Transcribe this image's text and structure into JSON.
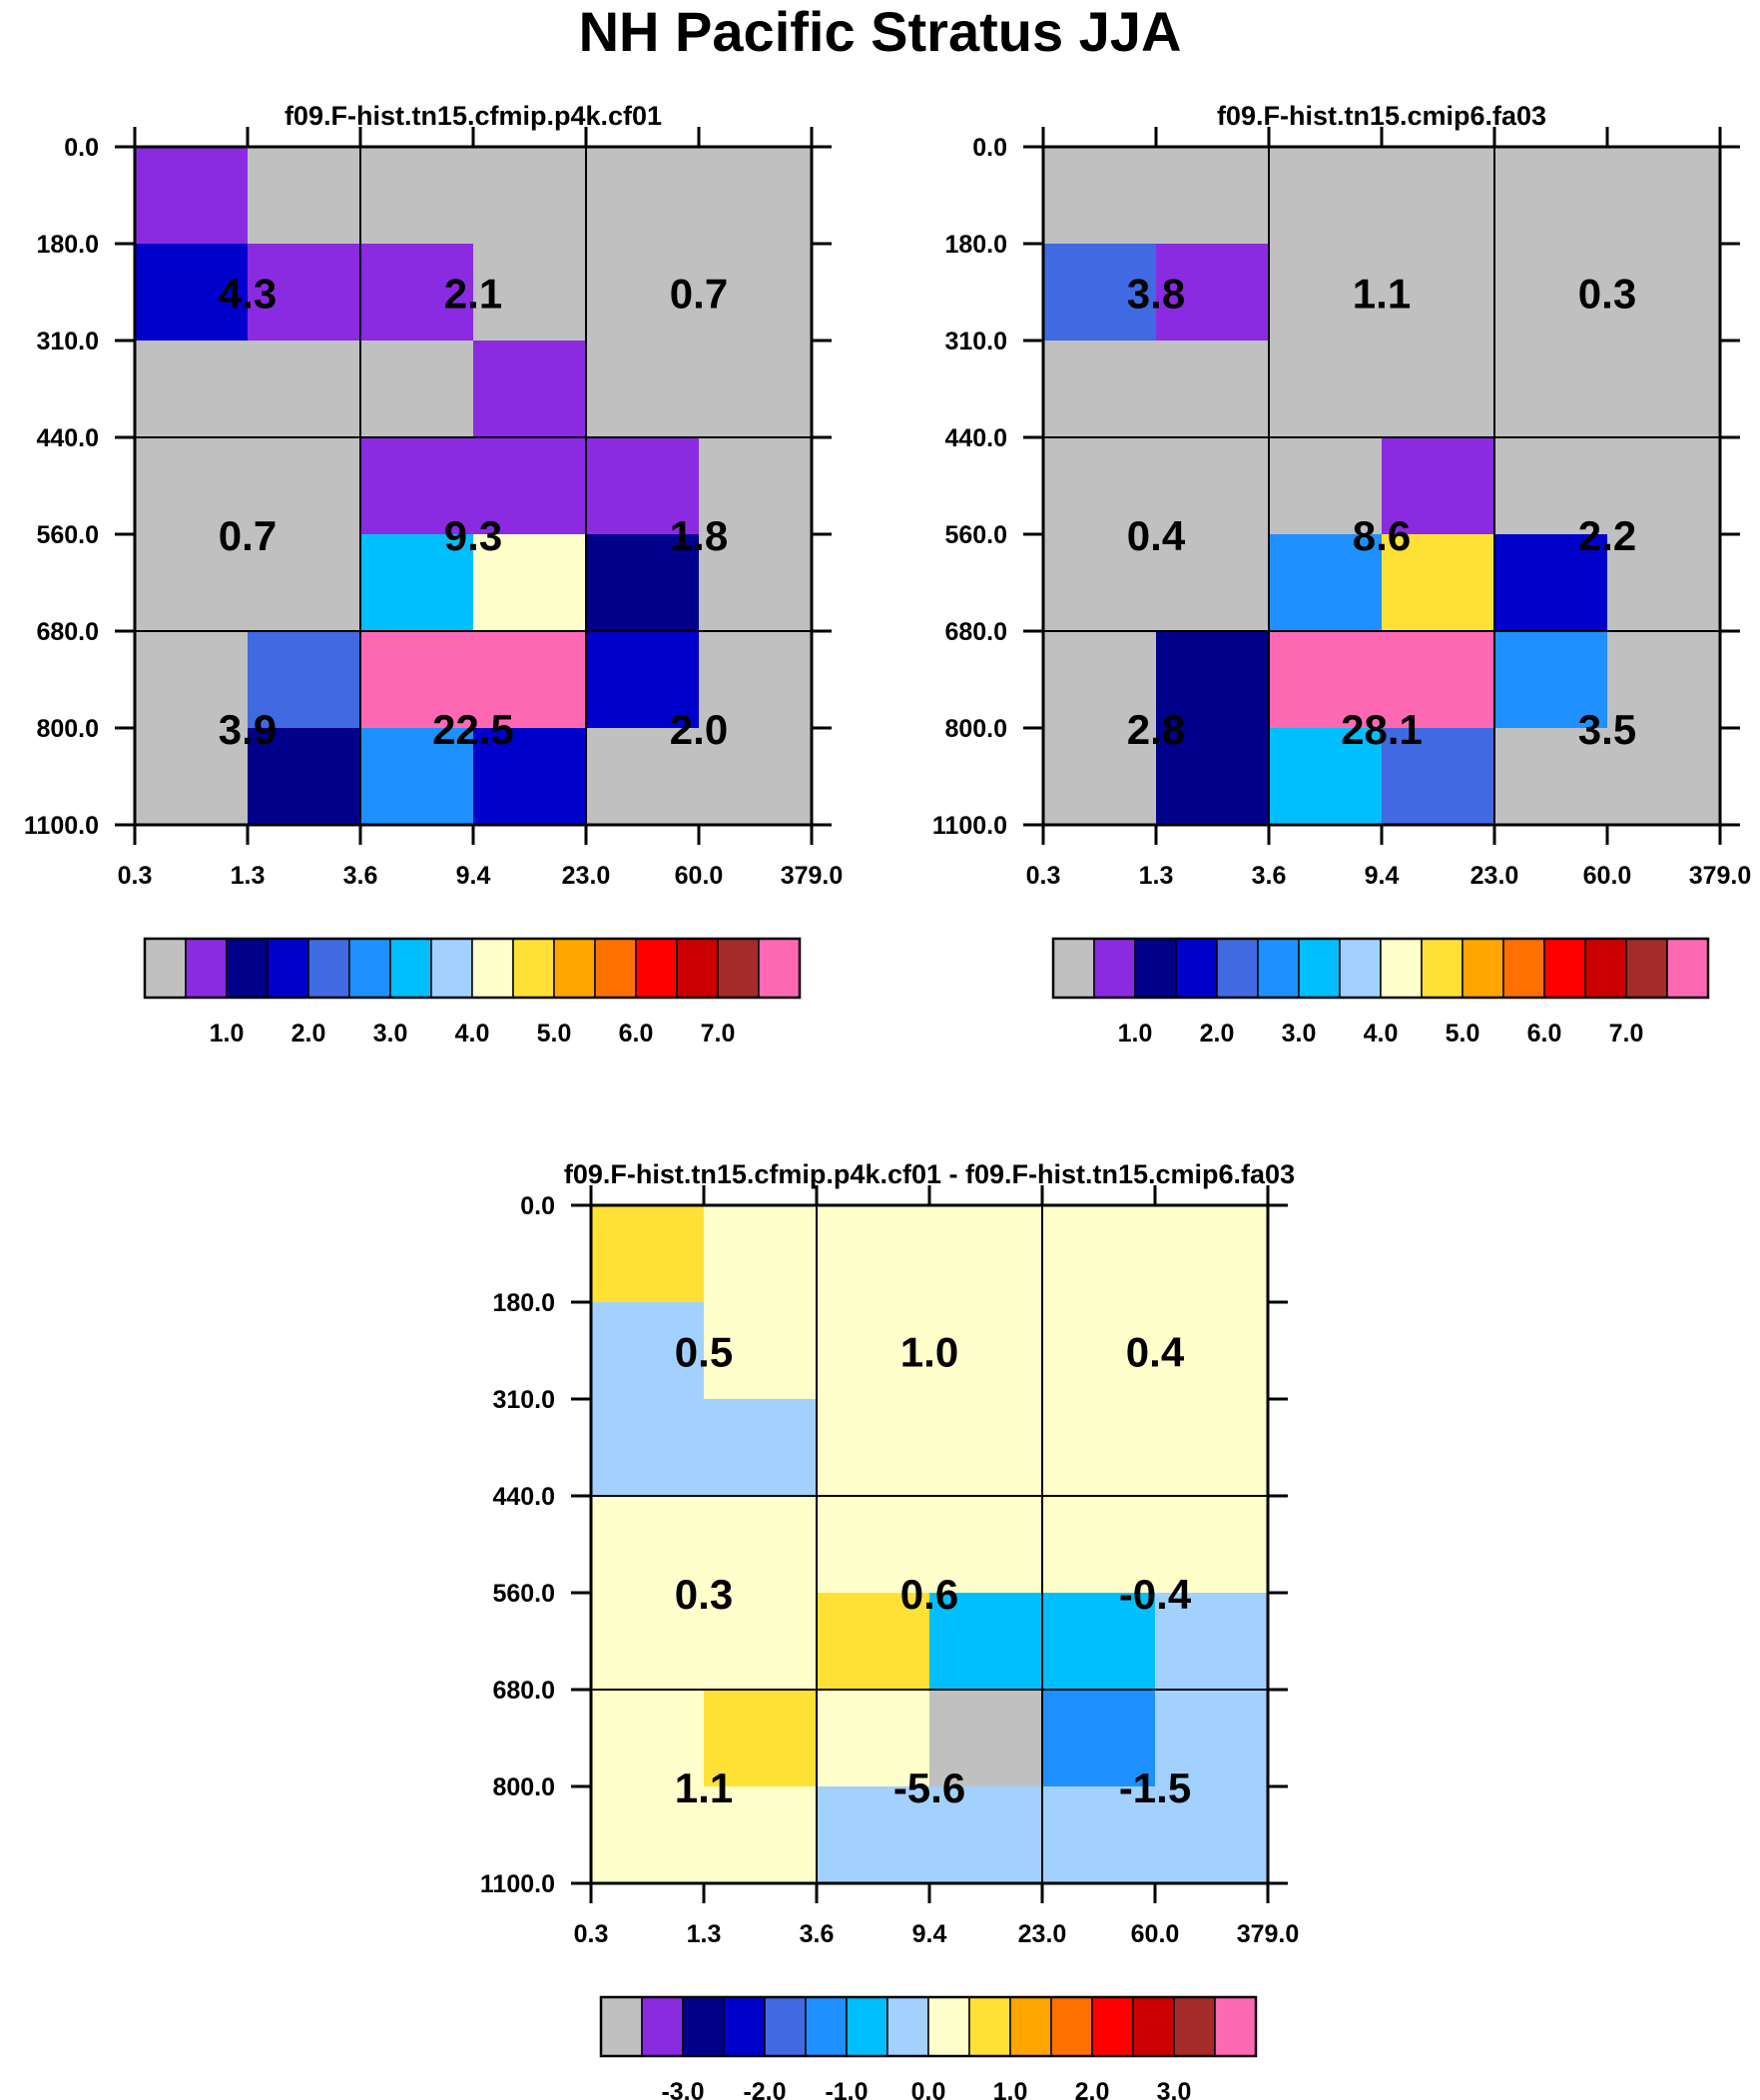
{
  "title": "NH Pacific Stratus JJA",
  "x_ticks": [
    "0.3",
    "1.3",
    "3.6",
    "9.4",
    "23.0",
    "60.0",
    "379.0"
  ],
  "y_ticks": [
    "0.0",
    "180.0",
    "310.0",
    "440.0",
    "560.0",
    "680.0",
    "800.0",
    "1100.0"
  ],
  "palette": {
    "gray": "#c0c0c0",
    "purple": "#8a2be2",
    "navy": "#00008b",
    "mediumblue": "#0000cd",
    "royalblue": "#4169e1",
    "dodgerblue": "#1e90ff",
    "deepskyblue": "#00bfff",
    "lightskyblue": "#a3d1ff",
    "lightyellow": "#ffffcc",
    "gold": "#ffe135",
    "orange": "#ffa500",
    "darkorange": "#ff7000",
    "red": "#ff0000",
    "darkred": "#cc0000",
    "brown": "#a52a2a",
    "hotpink": "#ff69b4"
  },
  "chart_data": [
    {
      "type": "heatmap",
      "title": "f09.F-hist.tn15.cfmip.p4k.cf01",
      "x_bin_edges": [
        0.3,
        1.3,
        3.6,
        9.4,
        23.0,
        60.0,
        379.0
      ],
      "y_bin_edges": [
        0.0,
        180.0,
        310.0,
        440.0,
        560.0,
        680.0,
        800.0,
        1100.0
      ],
      "cells": [
        [
          "purple",
          "gray",
          "gray",
          "gray",
          "gray",
          "gray"
        ],
        [
          "mediumblue",
          "purple",
          "purple",
          "gray",
          "gray",
          "gray"
        ],
        [
          "gray",
          "gray",
          "gray",
          "purple",
          "gray",
          "gray"
        ],
        [
          "gray",
          "gray",
          "purple",
          "purple",
          "purple",
          "gray"
        ],
        [
          "gray",
          "gray",
          "deepskyblue",
          "lightyellow",
          "navy",
          "gray"
        ],
        [
          "gray",
          "royalblue",
          "hotpink",
          "hotpink",
          "mediumblue",
          "gray"
        ],
        [
          "gray",
          "navy",
          "dodgerblue",
          "mediumblue",
          "gray",
          "gray"
        ]
      ],
      "group_labels": [
        [
          "4.3",
          "2.1",
          "0.7"
        ],
        [
          "0.7",
          "9.3",
          "1.8"
        ],
        [
          "3.9",
          "22.5",
          "2.0"
        ]
      ],
      "colorbar": {
        "colors": [
          "gray",
          "purple",
          "navy",
          "mediumblue",
          "royalblue",
          "dodgerblue",
          "deepskyblue",
          "lightskyblue",
          "lightyellow",
          "gold",
          "orange",
          "darkorange",
          "red",
          "darkred",
          "brown",
          "hotpink"
        ],
        "labels": [
          "1.0",
          "2.0",
          "3.0",
          "4.0",
          "5.0",
          "6.0",
          "7.0"
        ],
        "label_boundaries": [
          2,
          4,
          6,
          8,
          10,
          12,
          14
        ]
      }
    },
    {
      "type": "heatmap",
      "title": "f09.F-hist.tn15.cmip6.fa03",
      "x_bin_edges": [
        0.3,
        1.3,
        3.6,
        9.4,
        23.0,
        60.0,
        379.0
      ],
      "y_bin_edges": [
        0.0,
        180.0,
        310.0,
        440.0,
        560.0,
        680.0,
        800.0,
        1100.0
      ],
      "cells": [
        [
          "gray",
          "gray",
          "gray",
          "gray",
          "gray",
          "gray"
        ],
        [
          "royalblue",
          "purple",
          "gray",
          "gray",
          "gray",
          "gray"
        ],
        [
          "gray",
          "gray",
          "gray",
          "gray",
          "gray",
          "gray"
        ],
        [
          "gray",
          "gray",
          "gray",
          "purple",
          "gray",
          "gray"
        ],
        [
          "gray",
          "gray",
          "dodgerblue",
          "gold",
          "mediumblue",
          "gray"
        ],
        [
          "gray",
          "navy",
          "hotpink",
          "hotpink",
          "dodgerblue",
          "gray"
        ],
        [
          "gray",
          "navy",
          "deepskyblue",
          "royalblue",
          "gray",
          "gray"
        ]
      ],
      "group_labels": [
        [
          "3.8",
          "1.1",
          "0.3"
        ],
        [
          "0.4",
          "8.6",
          "2.2"
        ],
        [
          "2.8",
          "28.1",
          "3.5"
        ]
      ],
      "colorbar": {
        "colors": [
          "gray",
          "purple",
          "navy",
          "mediumblue",
          "royalblue",
          "dodgerblue",
          "deepskyblue",
          "lightskyblue",
          "lightyellow",
          "gold",
          "orange",
          "darkorange",
          "red",
          "darkred",
          "brown",
          "hotpink"
        ],
        "labels": [
          "1.0",
          "2.0",
          "3.0",
          "4.0",
          "5.0",
          "6.0",
          "7.0"
        ],
        "label_boundaries": [
          2,
          4,
          6,
          8,
          10,
          12,
          14
        ]
      }
    },
    {
      "type": "heatmap",
      "title": "f09.F-hist.tn15.cfmip.p4k.cf01 - f09.F-hist.tn15.cmip6.fa03",
      "x_bin_edges": [
        0.3,
        1.3,
        3.6,
        9.4,
        23.0,
        60.0,
        379.0
      ],
      "y_bin_edges": [
        0.0,
        180.0,
        310.0,
        440.0,
        560.0,
        680.0,
        800.0,
        1100.0
      ],
      "cells": [
        [
          "gold",
          "lightyellow",
          "lightyellow",
          "lightyellow",
          "lightyellow",
          "lightyellow"
        ],
        [
          "lightskyblue",
          "lightyellow",
          "lightyellow",
          "lightyellow",
          "lightyellow",
          "lightyellow"
        ],
        [
          "lightskyblue",
          "lightskyblue",
          "lightyellow",
          "lightyellow",
          "lightyellow",
          "lightyellow"
        ],
        [
          "lightyellow",
          "lightyellow",
          "lightyellow",
          "lightyellow",
          "lightyellow",
          "lightyellow"
        ],
        [
          "lightyellow",
          "lightyellow",
          "gold",
          "deepskyblue",
          "deepskyblue",
          "lightskyblue"
        ],
        [
          "lightyellow",
          "gold",
          "lightyellow",
          "gray",
          "dodgerblue",
          "lightskyblue"
        ],
        [
          "lightyellow",
          "lightyellow",
          "lightskyblue",
          "lightskyblue",
          "lightskyblue",
          "lightskyblue"
        ]
      ],
      "group_labels": [
        [
          "0.5",
          "1.0",
          "0.4"
        ],
        [
          "0.3",
          "0.6",
          "-0.4"
        ],
        [
          "1.1",
          "-5.6",
          "-1.5"
        ]
      ],
      "colorbar": {
        "colors": [
          "gray",
          "purple",
          "navy",
          "mediumblue",
          "royalblue",
          "dodgerblue",
          "deepskyblue",
          "lightskyblue",
          "lightyellow",
          "gold",
          "orange",
          "darkorange",
          "red",
          "darkred",
          "brown",
          "hotpink"
        ],
        "labels": [
          "-3.0",
          "-2.0",
          "-1.0",
          "0.0",
          "1.0",
          "2.0",
          "3.0"
        ],
        "label_boundaries": [
          2,
          4,
          6,
          8,
          10,
          12,
          14
        ]
      }
    }
  ]
}
